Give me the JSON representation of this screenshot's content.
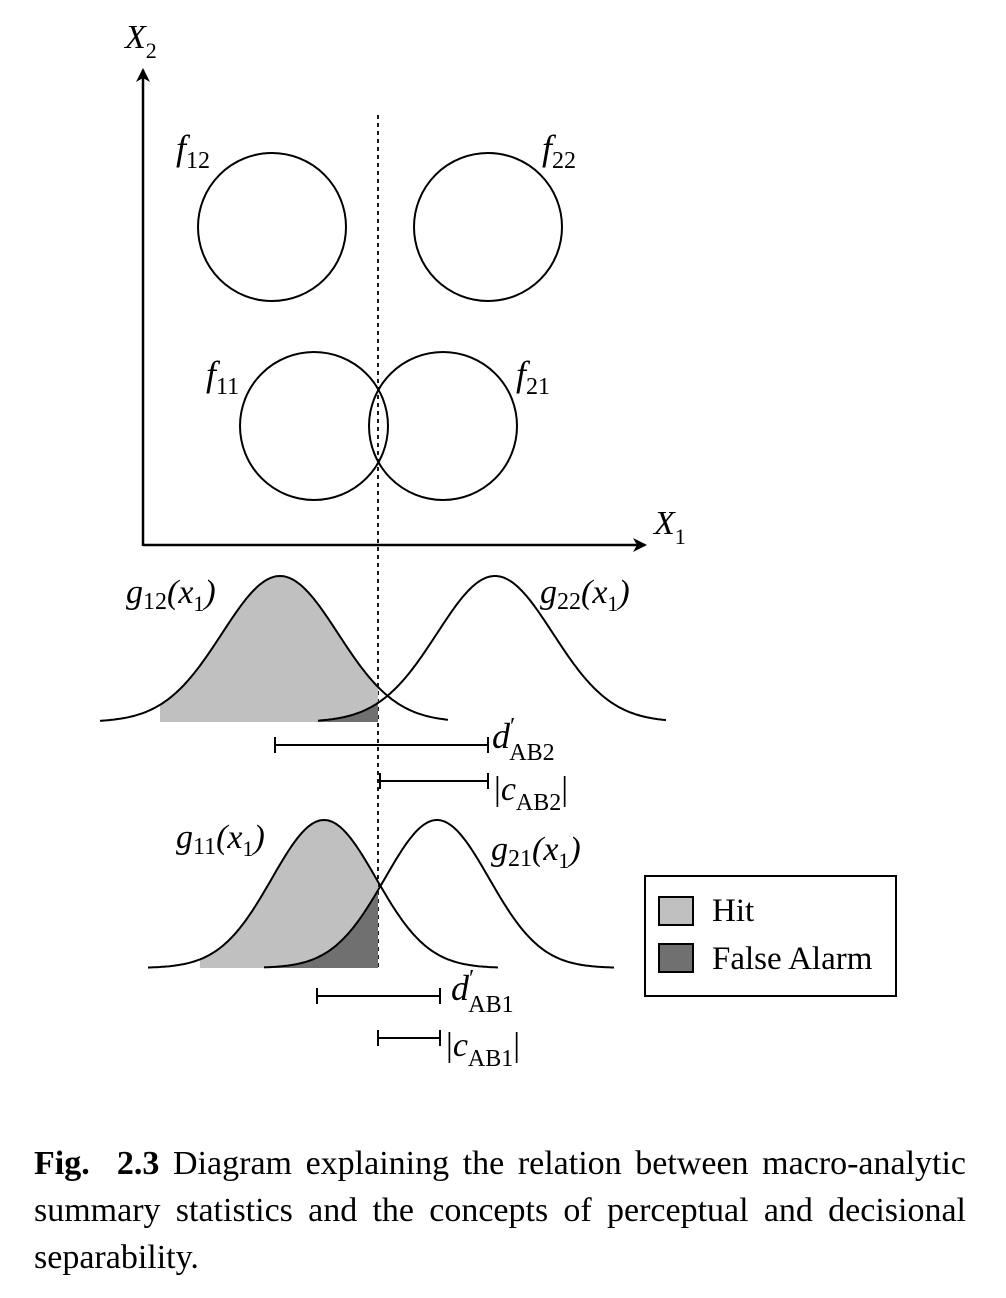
{
  "axes": {
    "x_label": {
      "main": "X",
      "sub": "1"
    },
    "y_label": {
      "main": "X",
      "sub": "2"
    }
  },
  "circles": {
    "f12": {
      "main": "f",
      "sub": "12"
    },
    "f22": {
      "main": "f",
      "sub": "22"
    },
    "f11": {
      "main": "f",
      "sub": "11"
    },
    "f21": {
      "main": "f",
      "sub": "21"
    }
  },
  "curves": {
    "g12": {
      "main": "g",
      "sub": "12",
      "arg": "(x",
      "argsub": "1",
      "close": ")"
    },
    "g22": {
      "main": "g",
      "sub": "22",
      "arg": "(x",
      "argsub": "1",
      "close": ")"
    },
    "g11": {
      "main": "g",
      "sub": "11",
      "arg": "(x",
      "argsub": "1",
      "close": ")"
    },
    "g21": {
      "main": "g",
      "sub": "21",
      "arg": "(x",
      "argsub": "1",
      "close": ")"
    }
  },
  "measures": {
    "d_ab2": {
      "main": "d",
      "prime": "′",
      "sub": "AB2"
    },
    "c_ab2": {
      "bar": "|",
      "main": "c",
      "sub": "AB2",
      "bar_close": "|"
    },
    "d_ab1": {
      "main": "d",
      "prime": "′",
      "sub": "AB1"
    },
    "c_ab1": {
      "bar": "|",
      "main": "c",
      "sub": "AB1",
      "bar_close": "|"
    }
  },
  "legend": {
    "hit": {
      "label": "Hit",
      "color": "#c0c0c0"
    },
    "false_alarm": {
      "label": "False Alarm",
      "color": "#707070"
    }
  },
  "caption": {
    "fig_label": "Fig.",
    "fig_number": "2.3",
    "text": "Diagram explaining the relation between macro-analytic summary statistics and the concepts of perceptual and decisional separability."
  }
}
